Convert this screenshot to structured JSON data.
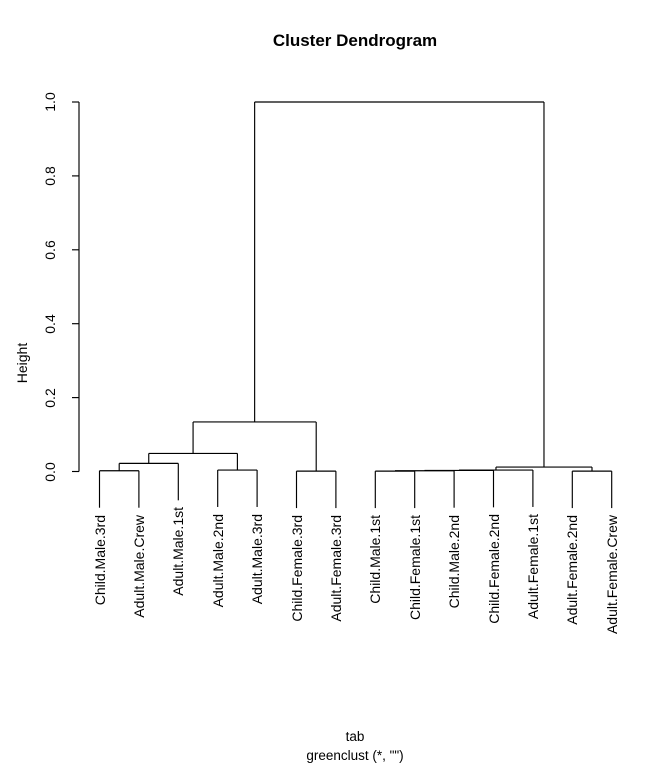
{
  "chart_data": {
    "type": "dendrogram",
    "title": "Cluster Dendrogram",
    "ylabel": "Height",
    "xlabel": "tab",
    "sub": "greenclust (*, \"\")",
    "ylim": [
      0,
      1.0
    ],
    "yticks": [
      0.0,
      0.2,
      0.4,
      0.6,
      0.8,
      1.0
    ],
    "ytick_labels": [
      "0.0",
      "0.2",
      "0.4",
      "0.6",
      "0.8",
      "1.0"
    ],
    "grid": false,
    "hang": 0.1,
    "leaves": [
      "Child.Male.3rd",
      "Adult.Male.Crew",
      "Adult.Male.1st",
      "Adult.Male.2nd",
      "Adult.Male.3rd",
      "Child.Female.3rd",
      "Adult.Female.3rd",
      "Child.Male.1st",
      "Child.Female.1st",
      "Child.Male.2nd",
      "Child.Female.2nd",
      "Adult.Female.1st",
      "Adult.Female.2nd",
      "Adult.Female.Crew"
    ],
    "merges": [
      {
        "a": "L0",
        "b": "L1",
        "h": 0.002
      },
      {
        "a": "M0",
        "b": "L2",
        "h": 0.022
      },
      {
        "a": "L3",
        "b": "L4",
        "h": 0.004
      },
      {
        "a": "M1",
        "b": "M2",
        "h": 0.049
      },
      {
        "a": "L5",
        "b": "L6",
        "h": 0.001
      },
      {
        "a": "M3",
        "b": "M4",
        "h": 0.134
      },
      {
        "a": "L7",
        "b": "L8",
        "h": 0.001
      },
      {
        "a": "M6",
        "b": "L9",
        "h": 0.002
      },
      {
        "a": "M7",
        "b": "L10",
        "h": 0.003
      },
      {
        "a": "M8",
        "b": "L11",
        "h": 0.004
      },
      {
        "a": "L12",
        "b": "L13",
        "h": 0.001
      },
      {
        "a": "M9",
        "b": "M10",
        "h": 0.012
      },
      {
        "a": "M5",
        "b": "M11",
        "h": 1.0
      }
    ]
  }
}
